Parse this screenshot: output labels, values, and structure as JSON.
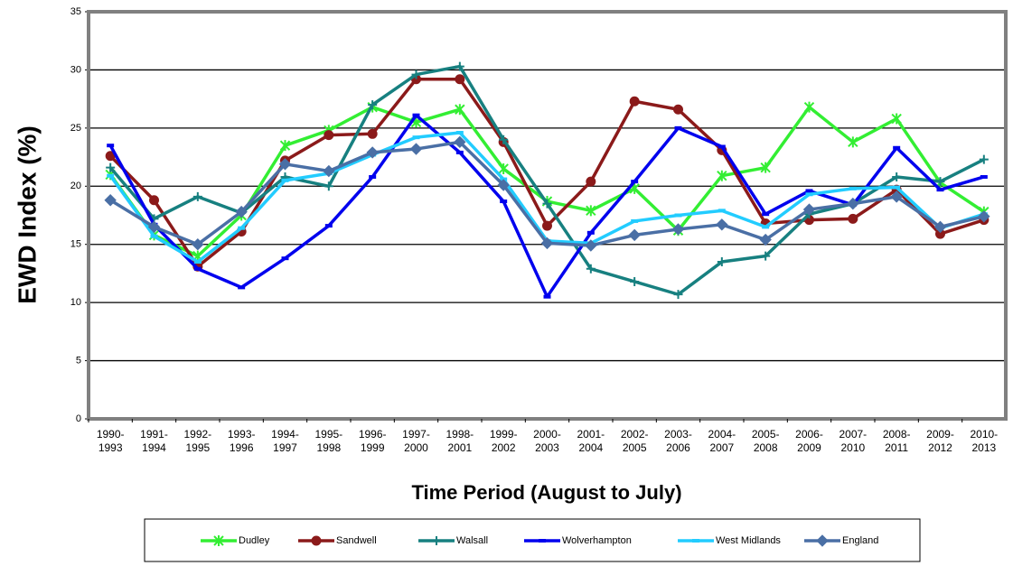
{
  "chart_data": {
    "type": "line",
    "y_label": "EWD Index (%)",
    "x_label": "Time Period (August to July)",
    "categories": [
      "1990-1993",
      "1991-1994",
      "1992-1995",
      "1993-1996",
      "1994-1997",
      "1995-1998",
      "1996-1999",
      "1997-2000",
      "1998-2001",
      "1999-2002",
      "2000-2003",
      "2001-2004",
      "2002-2005",
      "2003-2006",
      "2004-2007",
      "2005-2008",
      "2006-2009",
      "2007-2010",
      "2008-2011",
      "2009-2012",
      "2010-2013"
    ],
    "series": [
      {
        "name": "Dudley",
        "color": "#33ee33",
        "marker": "star",
        "values": [
          21,
          15.8,
          14,
          17.5,
          23.5,
          24.8,
          26.8,
          25.5,
          26.6,
          21.5,
          18.7,
          17.9,
          19.8,
          16.2,
          20.9,
          21.6,
          26.8,
          23.8,
          25.8,
          20.3,
          17.8
        ]
      },
      {
        "name": "Sandwell",
        "color": "#8b1a1a",
        "marker": "circle",
        "values": [
          22.6,
          18.8,
          13.1,
          16.1,
          22.2,
          24.4,
          24.5,
          29.2,
          29.2,
          23.8,
          16.6,
          20.4,
          27.3,
          26.6,
          23.1,
          16.8,
          17.1,
          17.2,
          19.7,
          15.9,
          17.1
        ]
      },
      {
        "name": "Walsall",
        "color": "#178080",
        "marker": "plus",
        "values": [
          21.6,
          17.2,
          19.1,
          17.7,
          20.8,
          20,
          27,
          29.6,
          30.3,
          24,
          18.5,
          12.9,
          11.8,
          10.7,
          13.5,
          14,
          17.6,
          18.5,
          20.8,
          20.4,
          22.3
        ]
      },
      {
        "name": "Wolverhampton",
        "color": "#0000ee",
        "marker": "dash",
        "values": [
          23.5,
          16.7,
          12.9,
          11.3,
          13.8,
          16.6,
          20.8,
          26.1,
          22.9,
          18.7,
          10.5,
          16,
          20.4,
          25,
          23.4,
          17.6,
          19.6,
          18.4,
          23.3,
          19.7,
          20.8
        ]
      },
      {
        "name": "West Midlands",
        "color": "#22ccff",
        "marker": "dash",
        "values": [
          20.9,
          15.7,
          13.5,
          16.4,
          20.5,
          21.1,
          22.7,
          24.2,
          24.6,
          20.6,
          15.3,
          15.1,
          17,
          17.5,
          17.9,
          16.5,
          19.3,
          19.8,
          19.9,
          16.4,
          17.6
        ]
      },
      {
        "name": "England",
        "color": "#4a6fa5",
        "marker": "diamond",
        "values": [
          18.8,
          16.5,
          15,
          17.8,
          21.9,
          21.3,
          22.9,
          23.2,
          23.8,
          20.1,
          15.1,
          14.9,
          15.8,
          16.3,
          16.7,
          15.4,
          18,
          18.5,
          19.1,
          16.5,
          17.4
        ]
      }
    ],
    "ylim": [
      0,
      35
    ],
    "yticks": [
      0,
      5,
      10,
      15,
      20,
      25,
      30,
      35
    ],
    "grid": true,
    "legend": "bottom"
  }
}
